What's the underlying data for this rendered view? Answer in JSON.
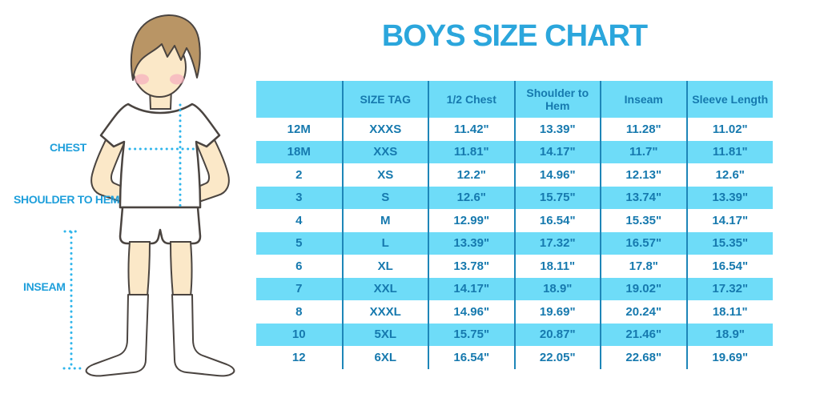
{
  "title": "BOYS SIZE CHART",
  "colors": {
    "title_blue": "#2BA6DC",
    "label_blue": "#1E9FDB",
    "cell_text_blue": "#1679AE",
    "stripe_blue": "#6EDCF8",
    "divider_blue": "#1E86B8",
    "dotted_measure_cyan": "#2FB5EB",
    "skin": "#FBE8C8",
    "hair_brown": "#B99565",
    "blush_pink": "#F5AEBE",
    "outline": "#4A4440"
  },
  "figure": {
    "labels": {
      "chest": "CHEST",
      "shoulder_to_hem": "SHOULDER TO HEM",
      "inseam": "INSEAM"
    }
  },
  "table": {
    "headers": [
      "",
      "SIZE TAG",
      "1/2 Chest",
      "Shoulder to Hem",
      "Inseam",
      "Sleeve Length"
    ],
    "rows": [
      [
        "12M",
        "XXXS",
        "11.42\"",
        "13.39\"",
        "11.28\"",
        "11.02\""
      ],
      [
        "18M",
        "XXS",
        "11.81\"",
        "14.17\"",
        "11.7\"",
        "11.81\""
      ],
      [
        "2",
        "XS",
        "12.2\"",
        "14.96\"",
        "12.13\"",
        "12.6\""
      ],
      [
        "3",
        "S",
        "12.6\"",
        "15.75\"",
        "13.74\"",
        "13.39\""
      ],
      [
        "4",
        "M",
        "12.99\"",
        "16.54\"",
        "15.35\"",
        "14.17\""
      ],
      [
        "5",
        "L",
        "13.39\"",
        "17.32\"",
        "16.57\"",
        "15.35\""
      ],
      [
        "6",
        "XL",
        "13.78\"",
        "18.11\"",
        "17.8\"",
        "16.54\""
      ],
      [
        "7",
        "XXL",
        "14.17\"",
        "18.9\"",
        "19.02\"",
        "17.32\""
      ],
      [
        "8",
        "XXXL",
        "14.96\"",
        "19.69\"",
        "20.24\"",
        "18.11\""
      ],
      [
        "10",
        "5XL",
        "15.75\"",
        "20.87\"",
        "21.46\"",
        "18.9\""
      ],
      [
        "12",
        "6XL",
        "16.54\"",
        "22.05\"",
        "22.68\"",
        "19.69\""
      ]
    ]
  }
}
